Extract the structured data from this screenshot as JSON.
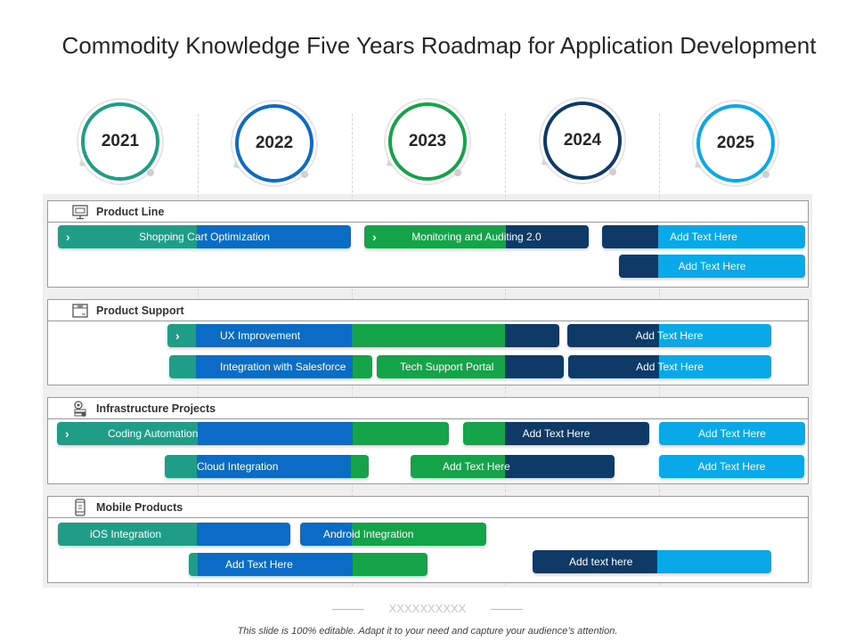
{
  "title": "Commodity Knowledge Five Years Roadmap for Application Development",
  "colors": {
    "teal": "#1f9d86",
    "green": "#15a34a",
    "blue": "#0a6cc4",
    "navy": "#0d3a66",
    "cyan": "#07a9e8"
  },
  "years": [
    {
      "label": "2021",
      "ring": "#1f9d86"
    },
    {
      "label": "2022",
      "ring": "#0a6cc4"
    },
    {
      "label": "2023",
      "ring": "#15a34a"
    },
    {
      "label": "2024",
      "ring": "#0d3a66"
    },
    {
      "label": "2025",
      "ring": "#07a9e8"
    }
  ],
  "sections": [
    {
      "label": "Product Line",
      "icon": "monitor-icon",
      "bars": [
        {
          "text": "Shopping Cart Optimization",
          "chevron": true
        },
        {
          "text": "Monitoring and Auditing 2.0",
          "chevron": true
        },
        {
          "text": "Add Text Here"
        },
        {
          "text": "Add Text Here"
        }
      ]
    },
    {
      "label": "Product Support",
      "icon": "box-icon",
      "bars": [
        {
          "text": "UX Improvement",
          "chevron": true
        },
        {
          "text": "Add Text Here"
        },
        {
          "text": "Integration with Salesforce"
        },
        {
          "text": "Tech Support Portal"
        },
        {
          "text": "Add Text Here"
        }
      ]
    },
    {
      "label": "Infrastructure  Projects",
      "icon": "gear-server-icon",
      "bars": [
        {
          "text": "Coding Automation",
          "chevron": true
        },
        {
          "text": "Add Text Here"
        },
        {
          "text": "Add Text Here"
        },
        {
          "text": "Cloud Integration"
        },
        {
          "text": "Add Text Here"
        },
        {
          "text": "Add Text Here"
        }
      ]
    },
    {
      "label": "Mobile Products",
      "icon": "mobile-icon",
      "bars": [
        {
          "text": "iOS Integration"
        },
        {
          "text": "Android Integration"
        },
        {
          "text": "Add Text Here"
        },
        {
          "text": "Add text here"
        }
      ]
    }
  ],
  "footer_deco": "XXXXXXXXXX",
  "footer": "This slide is 100% editable. Adapt it to your need and capture your audience’s attention."
}
